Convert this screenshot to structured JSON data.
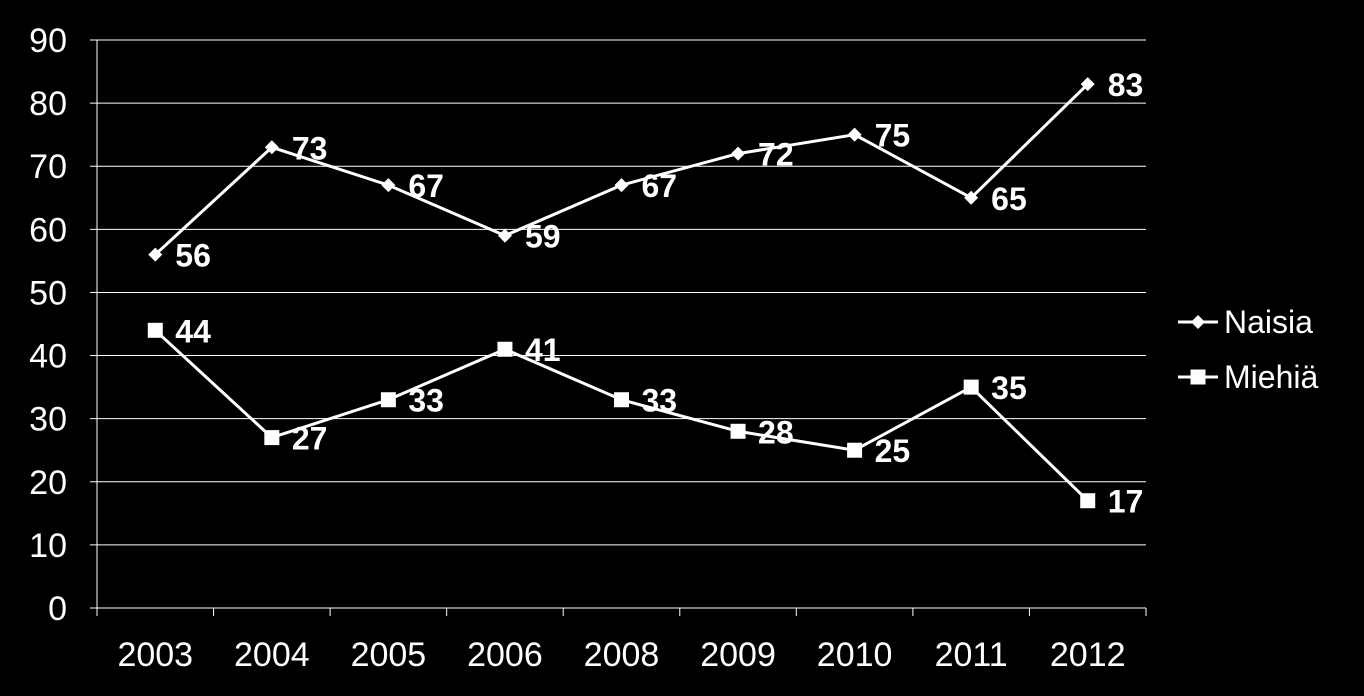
{
  "chart_data": {
    "type": "line",
    "categories": [
      "2003",
      "2004",
      "2005",
      "2006",
      "2008",
      "2009",
      "2010",
      "2011",
      "2012"
    ],
    "series": [
      {
        "name": "Naisia",
        "marker": "diamond",
        "values": [
          56,
          73,
          67,
          59,
          67,
          72,
          75,
          65,
          83
        ]
      },
      {
        "name": "Miehiä",
        "marker": "square",
        "values": [
          44,
          27,
          33,
          41,
          33,
          28,
          25,
          35,
          17
        ]
      }
    ],
    "ylim": [
      0,
      90
    ],
    "yticks": [
      0,
      10,
      20,
      30,
      40,
      50,
      60,
      70,
      80,
      90
    ],
    "grid": true,
    "legend": "right",
    "colors": {
      "background": "#000000",
      "line": "#ffffff",
      "grid": "#ffffff"
    }
  }
}
